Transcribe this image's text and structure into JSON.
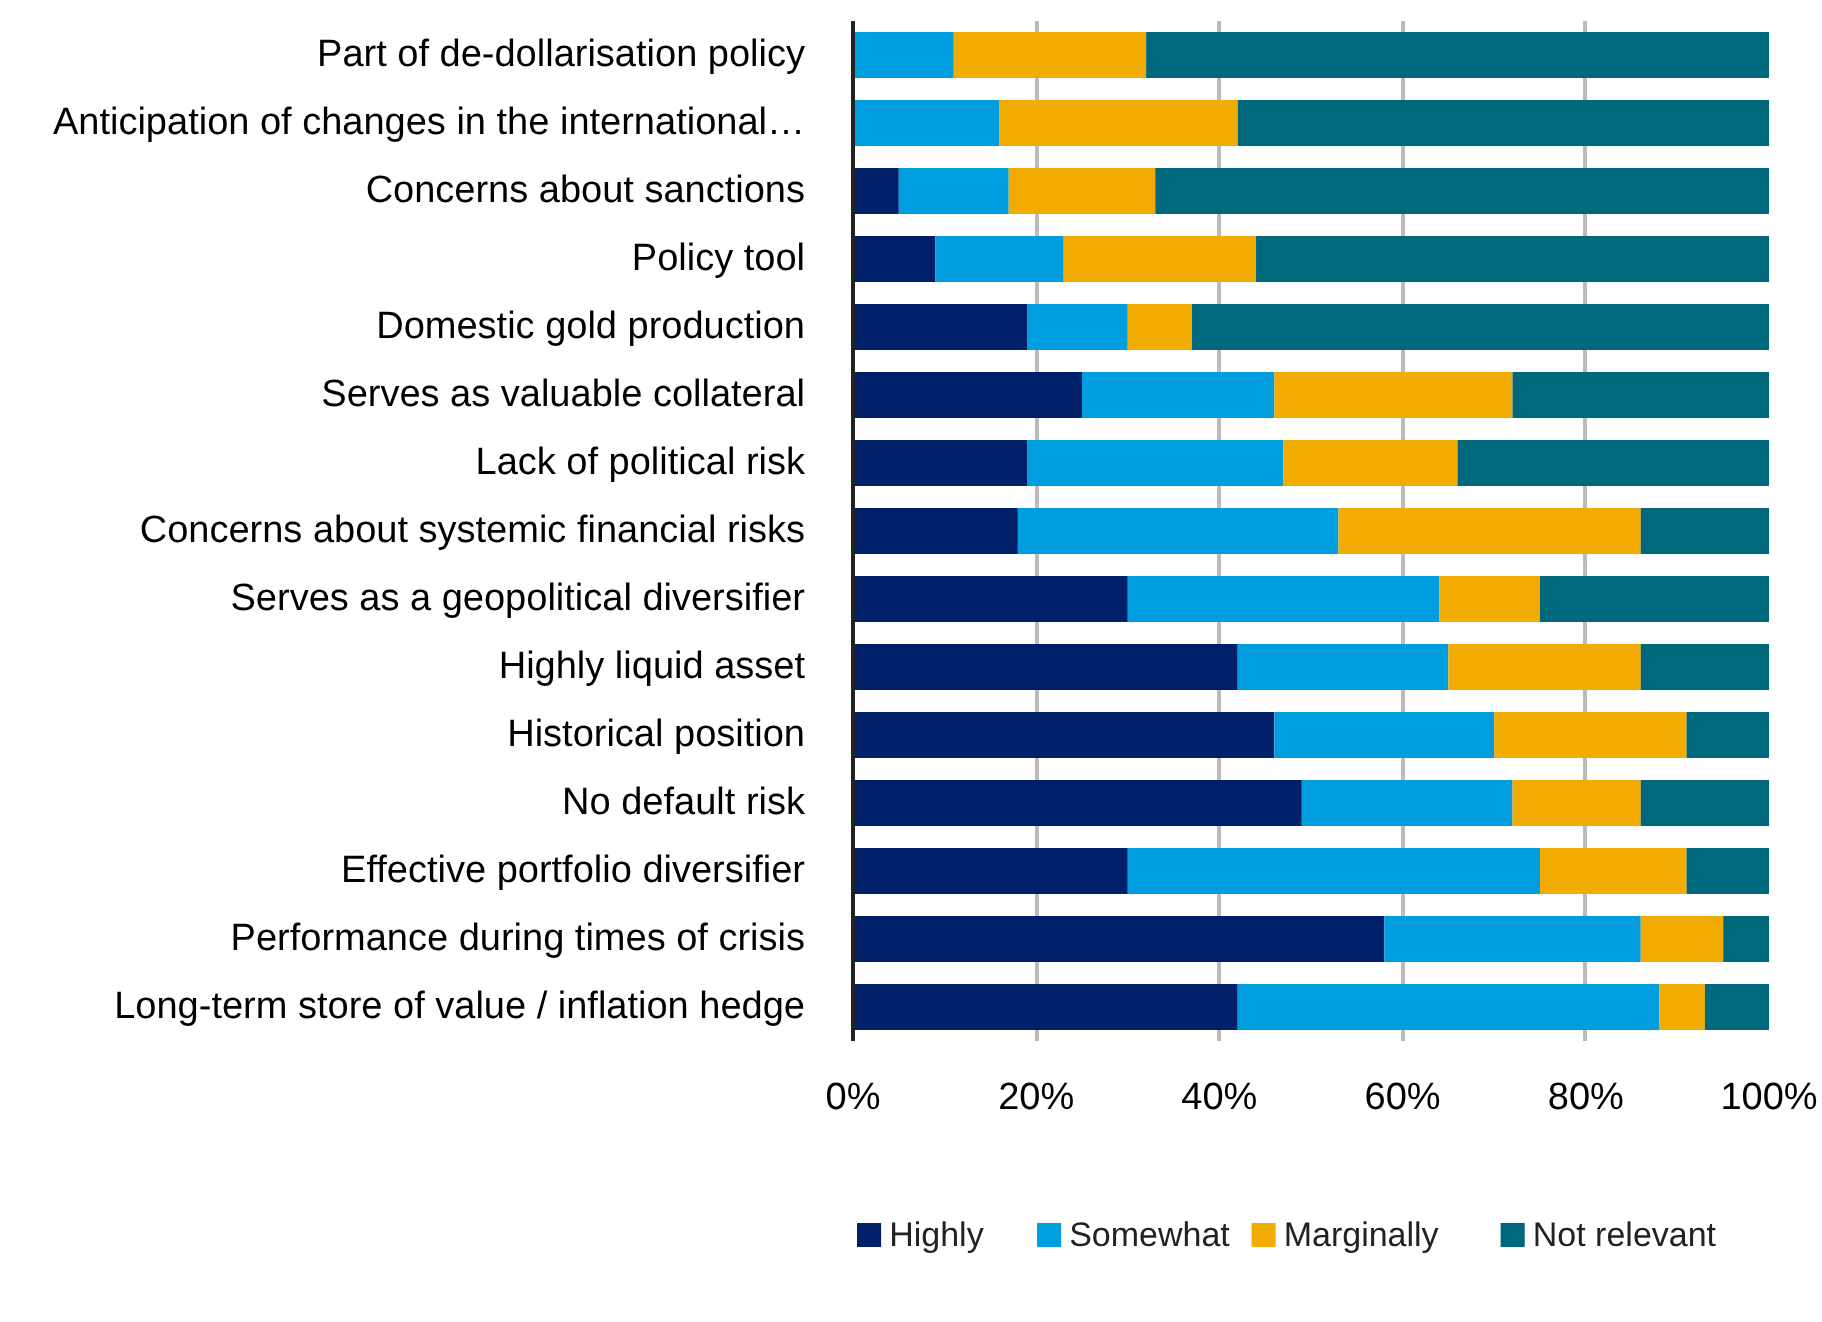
{
  "chart_data": {
    "type": "bar",
    "orientation": "horizontal",
    "stacked": true,
    "categories": [
      "Part of de-dollarisation policy",
      "Anticipation of changes in the international…",
      "Concerns about sanctions",
      "Policy tool",
      "Domestic gold production",
      "Serves as valuable collateral",
      "Lack of political risk",
      "Concerns about systemic financial risks",
      "Serves as a geopolitical diversifier",
      "Highly liquid asset",
      "Historical position",
      "No default risk",
      "Effective portfolio diversifier",
      "Performance during times of crisis",
      "Long-term store of value / inflation hedge"
    ],
    "series": [
      {
        "name": "Highly",
        "color": "#002169",
        "values": [
          0,
          0,
          5,
          9,
          19,
          25,
          19,
          18,
          30,
          42,
          46,
          49,
          30,
          58,
          42
        ]
      },
      {
        "name": "Somewhat",
        "color": "#009ddf",
        "values": [
          11,
          16,
          12,
          14,
          11,
          21,
          28,
          35,
          34,
          23,
          24,
          23,
          45,
          28,
          46
        ]
      },
      {
        "name": "Marginally",
        "color": "#f2ab00",
        "values": [
          21,
          26,
          16,
          21,
          7,
          26,
          19,
          33,
          11,
          21,
          21,
          14,
          16,
          9,
          5
        ]
      },
      {
        "name": "Not relevant",
        "color": "#00687d",
        "values": [
          68,
          58,
          67,
          56,
          63,
          28,
          34,
          14,
          25,
          14,
          9,
          14,
          9,
          5,
          7
        ]
      }
    ],
    "xlim": [
      0,
      100
    ],
    "xticks": [
      {
        "value": 0,
        "label": "0%"
      },
      {
        "value": 20,
        "label": "20%"
      },
      {
        "value": 40,
        "label": "40%"
      },
      {
        "value": 60,
        "label": "60%"
      },
      {
        "value": 80,
        "label": "80%"
      },
      {
        "value": 100,
        "label": "100%"
      }
    ],
    "grid": "x",
    "legend": "bottom"
  }
}
